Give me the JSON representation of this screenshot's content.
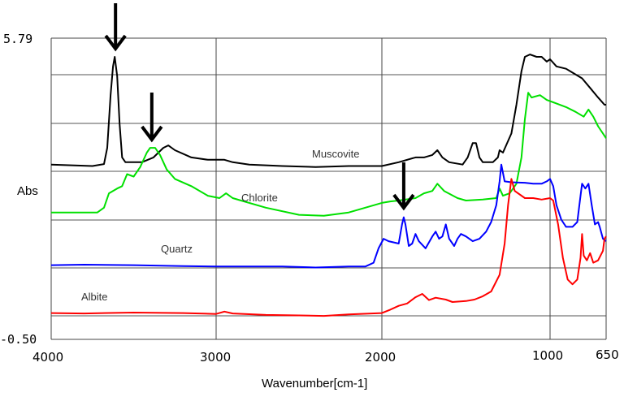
{
  "chart_data": {
    "type": "line",
    "title": "",
    "xlabel": "Wavenumber[cm-1]",
    "ylabel": "Abs",
    "xlim": [
      4000,
      650
    ],
    "ylim": [
      -0.5,
      5.79
    ],
    "x_reversed": true,
    "grid": true,
    "legend": "inline labels",
    "ytick_labels": [
      "5.79",
      "-0.50"
    ],
    "xtick_labels": [
      "4000",
      "3000",
      "2000",
      "1000",
      "650"
    ],
    "xticks": [
      4000,
      3000,
      2000,
      1000,
      650
    ],
    "series": [
      {
        "name": "Muscovite",
        "color": "#000000",
        "label_pos": [
          3580,
          3.4
        ],
        "points": [
          [
            4000,
            3.15
          ],
          [
            3750,
            3.12
          ],
          [
            3680,
            3.16
          ],
          [
            3660,
            3.5
          ],
          [
            3640,
            4.6
          ],
          [
            3625,
            5.2
          ],
          [
            3615,
            5.4
          ],
          [
            3600,
            5.0
          ],
          [
            3585,
            4.0
          ],
          [
            3570,
            3.3
          ],
          [
            3550,
            3.2
          ],
          [
            3450,
            3.2
          ],
          [
            3380,
            3.3
          ],
          [
            3320,
            3.5
          ],
          [
            3290,
            3.55
          ],
          [
            3250,
            3.45
          ],
          [
            3150,
            3.3
          ],
          [
            3050,
            3.25
          ],
          [
            2950,
            3.25
          ],
          [
            2900,
            3.2
          ],
          [
            2800,
            3.15
          ],
          [
            2600,
            3.12
          ],
          [
            2400,
            3.1
          ],
          [
            2200,
            3.12
          ],
          [
            2000,
            3.12
          ],
          [
            1900,
            3.2
          ],
          [
            1800,
            3.3
          ],
          [
            1750,
            3.3
          ],
          [
            1700,
            3.35
          ],
          [
            1670,
            3.45
          ],
          [
            1640,
            3.3
          ],
          [
            1600,
            3.2
          ],
          [
            1520,
            3.15
          ],
          [
            1490,
            3.3
          ],
          [
            1460,
            3.6
          ],
          [
            1440,
            3.6
          ],
          [
            1420,
            3.3
          ],
          [
            1400,
            3.2
          ],
          [
            1340,
            3.2
          ],
          [
            1310,
            3.3
          ],
          [
            1300,
            3.45
          ],
          [
            1280,
            3.4
          ],
          [
            1230,
            3.8
          ],
          [
            1200,
            4.4
          ],
          [
            1170,
            5.1
          ],
          [
            1150,
            5.4
          ],
          [
            1120,
            5.45
          ],
          [
            1080,
            5.4
          ],
          [
            1050,
            5.4
          ],
          [
            1020,
            5.3
          ],
          [
            1000,
            5.35
          ],
          [
            960,
            5.2
          ],
          [
            900,
            5.15
          ],
          [
            850,
            5.05
          ],
          [
            800,
            4.95
          ],
          [
            750,
            4.75
          ],
          [
            700,
            4.55
          ],
          [
            660,
            4.4
          ],
          [
            650,
            4.4
          ]
        ]
      },
      {
        "name": "Chlorite",
        "color": "#00e000",
        "label_pos": [
          3150,
          2.4
        ],
        "points": [
          [
            4000,
            2.15
          ],
          [
            3720,
            2.15
          ],
          [
            3680,
            2.25
          ],
          [
            3650,
            2.55
          ],
          [
            3600,
            2.65
          ],
          [
            3570,
            2.7
          ],
          [
            3540,
            2.95
          ],
          [
            3500,
            2.9
          ],
          [
            3460,
            3.1
          ],
          [
            3420,
            3.4
          ],
          [
            3400,
            3.5
          ],
          [
            3370,
            3.5
          ],
          [
            3340,
            3.35
          ],
          [
            3300,
            3.05
          ],
          [
            3250,
            2.85
          ],
          [
            3150,
            2.7
          ],
          [
            3050,
            2.5
          ],
          [
            2980,
            2.45
          ],
          [
            2940,
            2.55
          ],
          [
            2900,
            2.45
          ],
          [
            2850,
            2.4
          ],
          [
            2700,
            2.25
          ],
          [
            2500,
            2.1
          ],
          [
            2350,
            2.08
          ],
          [
            2200,
            2.15
          ],
          [
            2100,
            2.25
          ],
          [
            2000,
            2.35
          ],
          [
            1950,
            2.38
          ],
          [
            1900,
            2.4
          ],
          [
            1800,
            2.45
          ],
          [
            1750,
            2.55
          ],
          [
            1700,
            2.6
          ],
          [
            1670,
            2.75
          ],
          [
            1630,
            2.6
          ],
          [
            1550,
            2.45
          ],
          [
            1500,
            2.4
          ],
          [
            1400,
            2.42
          ],
          [
            1320,
            2.45
          ],
          [
            1300,
            2.65
          ],
          [
            1280,
            2.5
          ],
          [
            1240,
            2.55
          ],
          [
            1200,
            2.75
          ],
          [
            1170,
            3.3
          ],
          [
            1150,
            4.1
          ],
          [
            1130,
            4.65
          ],
          [
            1110,
            4.55
          ],
          [
            1060,
            4.6
          ],
          [
            1020,
            4.5
          ],
          [
            980,
            4.45
          ],
          [
            900,
            4.35
          ],
          [
            840,
            4.25
          ],
          [
            790,
            4.15
          ],
          [
            760,
            4.3
          ],
          [
            730,
            4.15
          ],
          [
            700,
            3.95
          ],
          [
            670,
            3.8
          ],
          [
            650,
            3.7
          ]
        ]
      },
      {
        "name": "Quartz",
        "color": "#0000ff",
        "label_pos": [
          3340,
          1.3
        ],
        "points": [
          [
            4000,
            1.05
          ],
          [
            3800,
            1.06
          ],
          [
            3500,
            1.05
          ],
          [
            3200,
            1.03
          ],
          [
            3000,
            1.02
          ],
          [
            2800,
            1.02
          ],
          [
            2600,
            1.02
          ],
          [
            2400,
            1.0
          ],
          [
            2200,
            1.02
          ],
          [
            2100,
            1.02
          ],
          [
            2050,
            1.1
          ],
          [
            2020,
            1.4
          ],
          [
            1990,
            1.6
          ],
          [
            1960,
            1.55
          ],
          [
            1900,
            1.5
          ],
          [
            1880,
            1.9
          ],
          [
            1870,
            2.05
          ],
          [
            1860,
            1.9
          ],
          [
            1840,
            1.45
          ],
          [
            1820,
            1.5
          ],
          [
            1800,
            1.7
          ],
          [
            1780,
            1.55
          ],
          [
            1740,
            1.4
          ],
          [
            1700,
            1.65
          ],
          [
            1680,
            1.75
          ],
          [
            1660,
            1.6
          ],
          [
            1640,
            1.65
          ],
          [
            1620,
            1.9
          ],
          [
            1600,
            1.6
          ],
          [
            1570,
            1.45
          ],
          [
            1550,
            1.6
          ],
          [
            1530,
            1.7
          ],
          [
            1500,
            1.65
          ],
          [
            1460,
            1.55
          ],
          [
            1420,
            1.6
          ],
          [
            1380,
            1.75
          ],
          [
            1350,
            1.95
          ],
          [
            1320,
            2.3
          ],
          [
            1300,
            2.8
          ],
          [
            1290,
            3.15
          ],
          [
            1270,
            2.8
          ],
          [
            1230,
            2.78
          ],
          [
            1150,
            2.77
          ],
          [
            1100,
            2.75
          ],
          [
            1050,
            2.75
          ],
          [
            1020,
            2.8
          ],
          [
            1000,
            2.85
          ],
          [
            980,
            2.7
          ],
          [
            960,
            2.3
          ],
          [
            930,
            2.0
          ],
          [
            900,
            1.85
          ],
          [
            860,
            1.85
          ],
          [
            830,
            1.95
          ],
          [
            810,
            2.5
          ],
          [
            800,
            2.75
          ],
          [
            780,
            2.65
          ],
          [
            760,
            2.75
          ],
          [
            740,
            2.3
          ],
          [
            720,
            1.9
          ],
          [
            700,
            1.95
          ],
          [
            690,
            1.85
          ],
          [
            670,
            1.6
          ],
          [
            650,
            1.55
          ]
        ]
      },
      {
        "name": "Albite",
        "color": "#ff0000",
        "label_pos": [
          3700,
          0.3
        ],
        "points": [
          [
            4000,
            0.05
          ],
          [
            3800,
            0.04
          ],
          [
            3500,
            0.06
          ],
          [
            3200,
            0.05
          ],
          [
            3000,
            0.03
          ],
          [
            2950,
            0.08
          ],
          [
            2900,
            0.04
          ],
          [
            2700,
            0.01
          ],
          [
            2500,
            0.0
          ],
          [
            2350,
            -0.01
          ],
          [
            2200,
            0.02
          ],
          [
            2000,
            0.05
          ],
          [
            1950,
            0.12
          ],
          [
            1900,
            0.2
          ],
          [
            1850,
            0.25
          ],
          [
            1800,
            0.38
          ],
          [
            1760,
            0.45
          ],
          [
            1720,
            0.32
          ],
          [
            1680,
            0.37
          ],
          [
            1620,
            0.33
          ],
          [
            1580,
            0.28
          ],
          [
            1500,
            0.3
          ],
          [
            1450,
            0.33
          ],
          [
            1400,
            0.4
          ],
          [
            1350,
            0.5
          ],
          [
            1300,
            0.85
          ],
          [
            1270,
            1.5
          ],
          [
            1250,
            2.3
          ],
          [
            1230,
            2.85
          ],
          [
            1210,
            2.6
          ],
          [
            1150,
            2.45
          ],
          [
            1100,
            2.45
          ],
          [
            1050,
            2.42
          ],
          [
            1000,
            2.45
          ],
          [
            980,
            2.4
          ],
          [
            950,
            1.9
          ],
          [
            920,
            1.2
          ],
          [
            890,
            0.75
          ],
          [
            860,
            0.65
          ],
          [
            830,
            0.75
          ],
          [
            810,
            1.2
          ],
          [
            800,
            1.7
          ],
          [
            790,
            1.25
          ],
          [
            770,
            1.15
          ],
          [
            750,
            1.3
          ],
          [
            730,
            1.1
          ],
          [
            700,
            1.15
          ],
          [
            670,
            1.35
          ],
          [
            660,
            1.6
          ],
          [
            650,
            1.65
          ]
        ]
      }
    ],
    "annotations": [
      {
        "type": "arrow",
        "x": 3610,
        "direction": "down",
        "target_series": "Muscovite"
      },
      {
        "type": "arrow",
        "x": 3390,
        "direction": "down",
        "target_series": "Chlorite"
      },
      {
        "type": "arrow",
        "x": 1870,
        "direction": "down",
        "target_series": "Quartz"
      }
    ]
  }
}
